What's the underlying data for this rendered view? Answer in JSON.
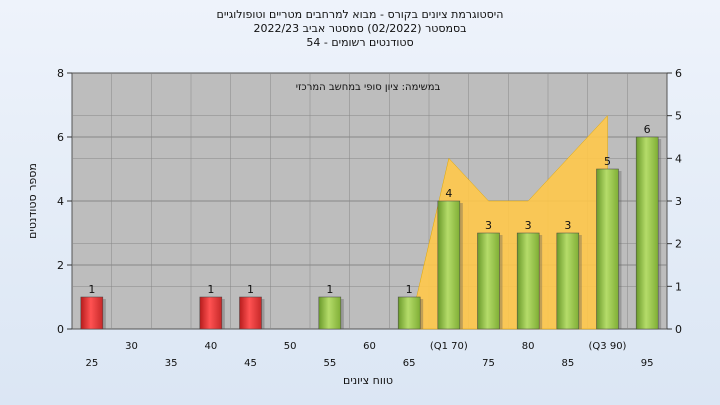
{
  "chart_data": {
    "type": "bar",
    "title_lines": [
      "היסטוגרמת ציונים בקורס - מבוא למרחבים מטריים וטופולוגיים",
      "בסמסטר  (02/2022)  סמסטר אביב 2022/23",
      "סטודנטים רשומים - 54"
    ],
    "annotation": "במשימה: ציון סופי במחשב המרכזי",
    "xlabel": "טווח ציונים",
    "ylabel": "מספר סטודנטים",
    "ylim": [
      0,
      8
    ],
    "y2lim": [
      0,
      6
    ],
    "yticks": [
      0,
      2,
      4,
      6,
      8
    ],
    "y2ticks": [
      0,
      1,
      2,
      3,
      4,
      5,
      6
    ],
    "categories": [
      "25",
      "30",
      "35",
      "40",
      "45",
      "50",
      "55",
      "60",
      "65",
      "(Q1 70)",
      "75",
      "80",
      "85",
      "(Q3 90)",
      "95"
    ],
    "values": [
      1,
      0,
      0,
      1,
      1,
      0,
      1,
      0,
      1,
      4,
      3,
      3,
      3,
      5,
      6
    ],
    "bar_colors": [
      "#e53935",
      "",
      "",
      "#e53935",
      "#e53935",
      "",
      "#8bc34a",
      "",
      "#8bc34a",
      "#8bc34a",
      "#8bc34a",
      "#8bc34a",
      "#8bc34a",
      "#8bc34a",
      "#8bc34a"
    ],
    "area": {
      "color": "#ffc84a",
      "values": [
        null,
        null,
        null,
        null,
        null,
        null,
        null,
        null,
        0,
        4,
        3,
        3,
        4,
        5,
        null
      ]
    },
    "grid": true
  }
}
